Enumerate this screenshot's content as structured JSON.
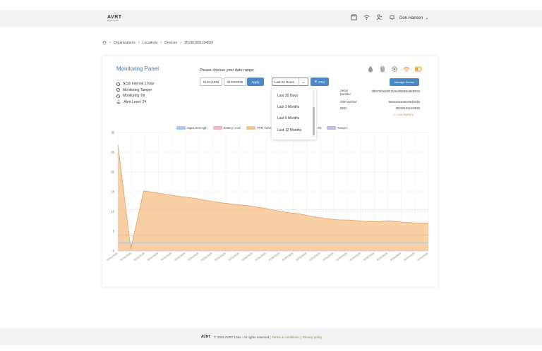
{
  "header": {
    "logo_text": "AVRT",
    "logo_sub": "DATA LABS",
    "user_name": "Don Hansen",
    "icons": [
      "store-icon",
      "wifi-icon",
      "people-icon",
      "bell-icon"
    ]
  },
  "breadcrumb": {
    "items": [
      "Organizations",
      "Locations",
      "Devices",
      "351901931104826"
    ]
  },
  "panel": {
    "title": "Monitoring Panel",
    "scan_interval": "Scan Interval 1 hour",
    "tamper": "Monitoring Tamper",
    "tilt": "Monitoring Tilt",
    "alert_level": "Alert Level:  24"
  },
  "daterange": {
    "label": "Please choose your date range:",
    "start": "01/01/2025",
    "end": "01/02/2025",
    "apply_label": "Apply",
    "selected": "Last 24 Hours",
    "csv_label": "CSV",
    "options": [
      "Last 30 Days",
      "Last 3 Months",
      "Last 6 Months",
      "Last 12 Months"
    ]
  },
  "device": {
    "manage_label": "Manage Device",
    "serial_label": "Serial Number:",
    "serial_value": "4fb87df4e58f37fc9a3f9993bd8d0933",
    "sim_label": "SIM Number:",
    "sim_value": "8933240100032919455",
    "imei_label": "IMEI:",
    "imei_value": "351901931104826",
    "battery_status": "Low Battery"
  },
  "chart_data": {
    "type": "area",
    "legend": [
      {
        "name": "Signal Strength",
        "color": "#a9cbed"
      },
      {
        "name": "Battery Level",
        "color": "#f5b6c0"
      },
      {
        "name": "PPM Value",
        "color": "#f6c48c"
      },
      {
        "name": "Tilt",
        "color": "#a9dbe0"
      },
      {
        "name": "Tamper",
        "color": "#c9b6ea"
      }
    ],
    "ylim": [
      0,
      30
    ],
    "yticks": [
      0,
      5,
      10,
      15,
      20,
      25,
      30
    ],
    "x_tick_labels": [
      "01/01/2025",
      "01/01/2025",
      "01/01/2025",
      "01/01/2025",
      "01/01/2025",
      "01/01/2025",
      "01/01/2025",
      "01/01/2025",
      "01/01/2025",
      "01/01/2025",
      "01/01/2025",
      "01/01/2025",
      "01/02/2025",
      "01/02/2025",
      "01/02/2025",
      "01/02/2025",
      "01/02/2025",
      "01/02/2025",
      "01/02/2025",
      "01/02/2025",
      "01/02/2025",
      "01/02/2025",
      "01/02/2025",
      "01/02/2025"
    ],
    "ppm_values": [
      27,
      0.5,
      15.2,
      14.7,
      14.2,
      13.7,
      13.3,
      12.7,
      12.2,
      11.8,
      11.5,
      11,
      10.4,
      9.8,
      9.4,
      8.8,
      8.2,
      7.9,
      7.8,
      7.5,
      7.4,
      7.6,
      7.3,
      7.1,
      7
    ],
    "battery_level": 4,
    "signal_strength": 2,
    "reference_line": 10.5
  }
}
